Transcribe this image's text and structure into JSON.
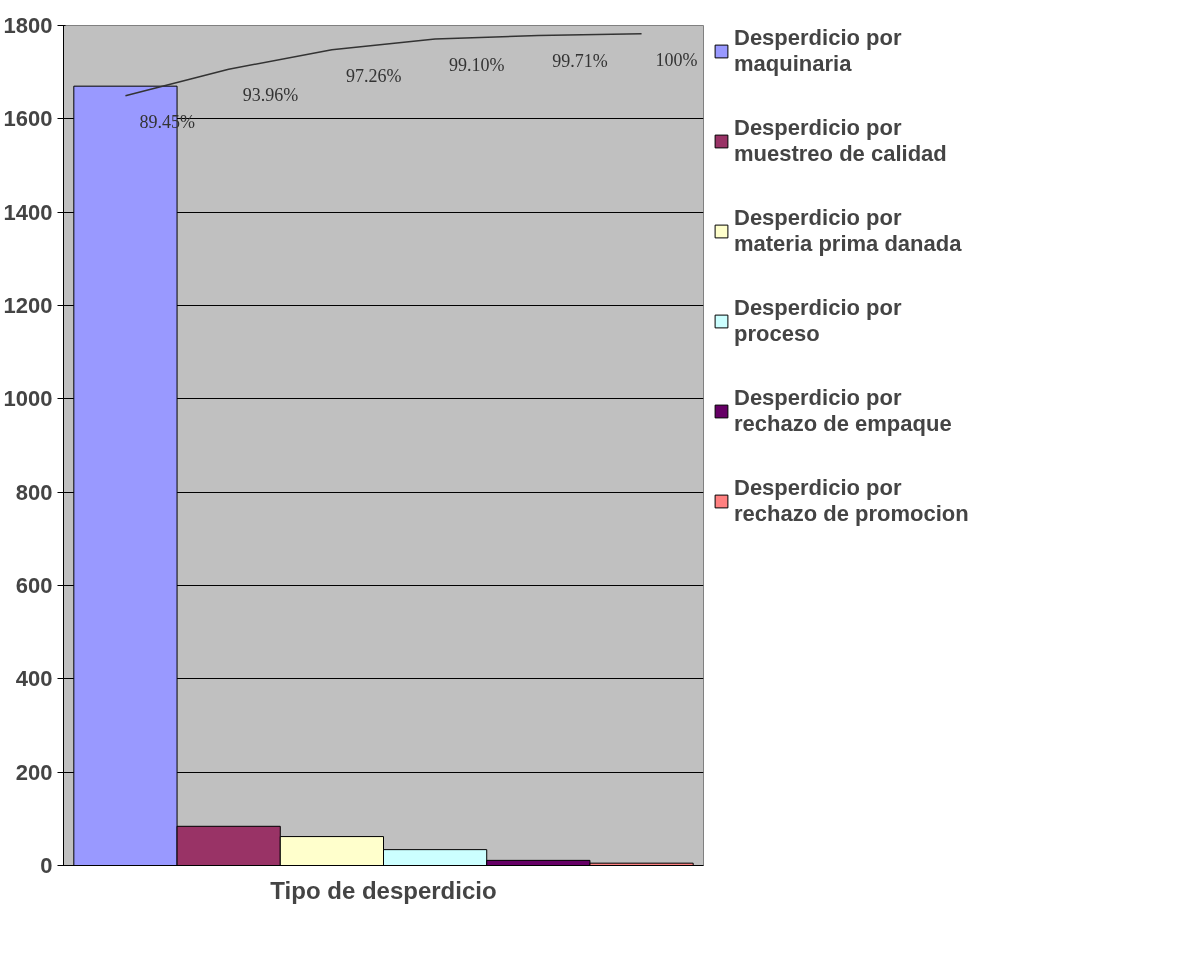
{
  "chart_data": {
    "type": "bar",
    "xlabel": "Tipo de desperdicio",
    "categories": [
      null,
      null,
      null,
      null,
      null,
      null
    ],
    "series": [
      {
        "name": "Desperdicio por maquinaria",
        "color": "#9999ff",
        "values": [
          1670,
          null,
          null,
          null,
          null,
          null
        ]
      },
      {
        "name": "Desperdicio por muestreo de calidad",
        "color": "#993366",
        "values": [
          null,
          84,
          null,
          null,
          null,
          null
        ]
      },
      {
        "name": "Desperdicio por materia prima danada",
        "color": "#ffffcc",
        "values": [
          null,
          null,
          62,
          null,
          null,
          null
        ]
      },
      {
        "name": "Desperdicio por proceso",
        "color": "#ccffff",
        "values": [
          null,
          null,
          null,
          34,
          null,
          null
        ]
      },
      {
        "name": "Desperdicio por rechazo de empaque",
        "color": "#660066",
        "values": [
          null,
          null,
          null,
          null,
          11,
          null
        ]
      },
      {
        "name": "Desperdicio por rechazo de promocion",
        "color": "#ff8080",
        "values": [
          null,
          null,
          null,
          null,
          null,
          5
        ]
      },
      {
        "type": "line",
        "axis": "y2",
        "color": "#333333",
        "values": [
          89.45,
          93.96,
          97.26,
          99.1,
          99.71,
          100
        ],
        "value_labels": [
          "89.45%",
          "93.96%",
          "97.26%",
          "99.10%",
          "99.71%",
          "100%"
        ]
      }
    ],
    "ylim": [
      0,
      1800
    ],
    "yticks": [
      0,
      200,
      400,
      600,
      800,
      1000,
      1200,
      1400,
      1600,
      1800
    ],
    "y2lim": [
      -41.5,
      101.4
    ],
    "tick_labels": "y",
    "grid": "y",
    "legend": "right"
  }
}
